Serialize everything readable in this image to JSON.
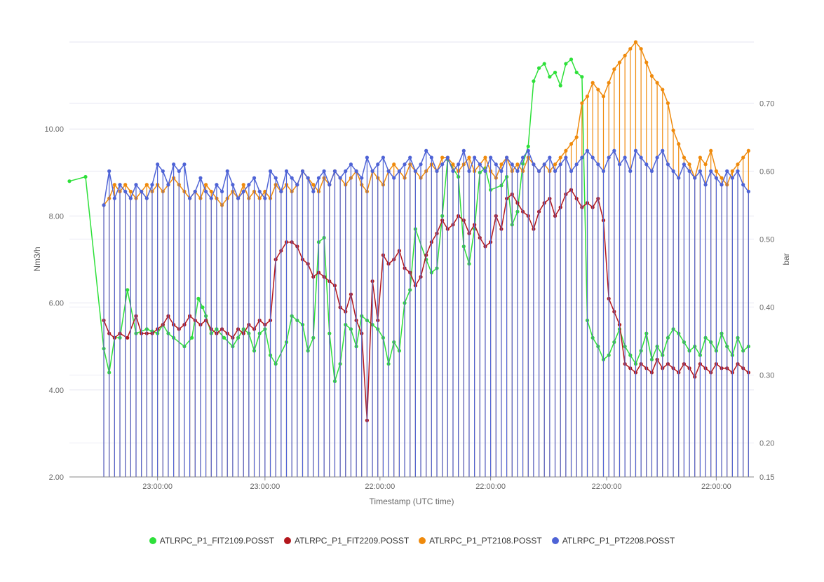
{
  "chart_data": {
    "type": "line",
    "xlabel": "Timestamp (UTC time)",
    "ylabel_left": "Nm3/h",
    "ylabel_right": "bar",
    "x_tick_labels": [
      "23:00:00",
      "23:00:00",
      "22:00:00",
      "22:00:00",
      "22:00:00",
      "22:00:00"
    ],
    "x_tick_positions": [
      1.0,
      2.0,
      3.07,
      4.1,
      5.18,
      6.2
    ],
    "x_range": [
      0.18,
      6.55
    ],
    "y_left_ticks": [
      2.0,
      4.0,
      6.0,
      8.0,
      10.0
    ],
    "y_left_tick_labels": [
      "2.00",
      "4.00",
      "6.00",
      "8.00",
      "10.00"
    ],
    "y_left_range": [
      2.0,
      12.0
    ],
    "y_right_ticks": [
      0.15,
      0.2,
      0.3,
      0.4,
      0.5,
      0.6,
      0.7
    ],
    "y_right_tick_labels": [
      "0.15",
      "0.20",
      "0.30",
      "0.40",
      "0.50",
      "0.60",
      "0.70"
    ],
    "y_right_range": [
      0.15,
      0.79
    ],
    "grid": true,
    "legend_position": "bottom",
    "series": [
      {
        "name": "ATLRPC_P1_FIT2109.POSST",
        "axis": "left",
        "color": "#2ee03a",
        "x": [
          0.18,
          0.33,
          0.5,
          0.55,
          0.6,
          0.65,
          0.72,
          0.8,
          0.9,
          0.95,
          1.0,
          1.05,
          1.1,
          1.15,
          1.25,
          1.32,
          1.38,
          1.42,
          1.45,
          1.5,
          1.55,
          1.62,
          1.7,
          1.75,
          1.8,
          1.85,
          1.9,
          1.95,
          2.0,
          2.05,
          2.1,
          2.2,
          2.25,
          2.3,
          2.35,
          2.4,
          2.45,
          2.5,
          2.55,
          2.6,
          2.65,
          2.7,
          2.75,
          2.8,
          2.85,
          2.9,
          2.95,
          3.0,
          3.05,
          3.1,
          3.15,
          3.2,
          3.25,
          3.3,
          3.35,
          3.4,
          3.5,
          3.55,
          3.6,
          3.65,
          3.7,
          3.8,
          3.85,
          3.9,
          3.95,
          4.0,
          4.05,
          4.1,
          4.2,
          4.25,
          4.3,
          4.35,
          4.4,
          4.45,
          4.5,
          4.55,
          4.6,
          4.65,
          4.7,
          4.75,
          4.8,
          4.85,
          4.9,
          4.95,
          5.0,
          5.05,
          5.1,
          5.15,
          5.2,
          5.25,
          5.3,
          5.35,
          5.4,
          5.45,
          5.5,
          5.55,
          5.6,
          5.65,
          5.7,
          5.75,
          5.8,
          5.85,
          5.9,
          5.95,
          6.0,
          6.05,
          6.1,
          6.15,
          6.2,
          6.25,
          6.3,
          6.35,
          6.4,
          6.45,
          6.5
        ],
        "y": [
          8.8,
          8.9,
          4.95,
          4.4,
          5.2,
          5.2,
          6.3,
          5.3,
          5.4,
          5.35,
          5.3,
          5.5,
          5.3,
          5.2,
          5.0,
          5.2,
          6.1,
          5.9,
          5.7,
          5.3,
          5.4,
          5.2,
          5.0,
          5.2,
          5.4,
          5.3,
          4.9,
          5.3,
          5.4,
          4.8,
          4.6,
          5.1,
          5.7,
          5.6,
          5.5,
          4.9,
          5.2,
          7.4,
          7.5,
          5.3,
          4.2,
          4.6,
          5.5,
          5.4,
          5.0,
          5.7,
          5.6,
          5.5,
          5.4,
          5.2,
          4.6,
          5.1,
          4.9,
          6.0,
          6.3,
          7.7,
          7.0,
          6.7,
          6.8,
          8.0,
          9.3,
          8.9,
          7.3,
          6.9,
          7.7,
          9.0,
          9.1,
          8.6,
          8.7,
          8.9,
          7.8,
          8.1,
          9.2,
          9.6,
          11.1,
          11.4,
          11.5,
          11.2,
          11.3,
          11.0,
          11.5,
          11.6,
          11.3,
          11.2,
          5.6,
          5.2,
          5.0,
          4.7,
          4.8,
          5.1,
          5.4,
          5.0,
          4.8,
          4.6,
          4.9,
          5.3,
          4.7,
          5.0,
          4.8,
          5.2,
          5.4,
          5.3,
          5.1,
          4.9,
          5.0,
          4.8,
          5.2,
          5.1,
          4.9,
          5.3,
          5.0,
          4.8,
          5.2,
          4.9,
          5.0
        ]
      },
      {
        "name": "ATLRPC_P1_FIT2209.POSST",
        "axis": "left",
        "color": "#b3161c",
        "x": [
          0.5,
          0.55,
          0.6,
          0.65,
          0.72,
          0.8,
          0.85,
          0.9,
          0.95,
          1.0,
          1.05,
          1.1,
          1.15,
          1.2,
          1.25,
          1.3,
          1.35,
          1.4,
          1.45,
          1.5,
          1.55,
          1.6,
          1.65,
          1.7,
          1.75,
          1.8,
          1.85,
          1.9,
          1.95,
          2.0,
          2.05,
          2.1,
          2.15,
          2.2,
          2.25,
          2.3,
          2.35,
          2.4,
          2.45,
          2.5,
          2.55,
          2.6,
          2.65,
          2.7,
          2.75,
          2.8,
          2.85,
          2.9,
          2.95,
          3.0,
          3.05,
          3.1,
          3.15,
          3.2,
          3.25,
          3.3,
          3.35,
          3.4,
          3.45,
          3.5,
          3.55,
          3.6,
          3.65,
          3.7,
          3.75,
          3.8,
          3.85,
          3.9,
          3.95,
          4.0,
          4.05,
          4.1,
          4.15,
          4.2,
          4.25,
          4.3,
          4.35,
          4.4,
          4.45,
          4.5,
          4.55,
          4.6,
          4.65,
          4.7,
          4.75,
          4.8,
          4.85,
          4.9,
          4.95,
          5.0,
          5.05,
          5.1,
          5.15,
          5.2,
          5.25,
          5.3,
          5.35,
          5.4,
          5.45,
          5.5,
          5.55,
          5.6,
          5.65,
          5.7,
          5.75,
          5.8,
          5.85,
          5.9,
          5.95,
          6.0,
          6.05,
          6.1,
          6.15,
          6.2,
          6.25,
          6.3,
          6.35,
          6.4,
          6.45,
          6.5
        ],
        "y": [
          5.6,
          5.3,
          5.2,
          5.3,
          5.2,
          5.7,
          5.3,
          5.3,
          5.3,
          5.4,
          5.5,
          5.7,
          5.5,
          5.4,
          5.5,
          5.7,
          5.6,
          5.5,
          5.6,
          5.4,
          5.3,
          5.4,
          5.3,
          5.2,
          5.4,
          5.3,
          5.5,
          5.4,
          5.6,
          5.5,
          5.6,
          7.0,
          7.2,
          7.4,
          7.4,
          7.3,
          7.0,
          6.9,
          6.6,
          6.7,
          6.6,
          6.5,
          6.4,
          5.9,
          5.8,
          6.2,
          5.6,
          5.3,
          3.3,
          6.5,
          5.6,
          7.1,
          6.9,
          7.0,
          7.2,
          6.8,
          6.7,
          6.4,
          6.6,
          7.1,
          7.4,
          7.6,
          7.9,
          7.7,
          7.8,
          8.0,
          7.9,
          7.6,
          7.8,
          7.5,
          7.3,
          7.4,
          8.0,
          7.7,
          8.4,
          8.5,
          8.3,
          8.1,
          8.0,
          7.7,
          8.1,
          8.3,
          8.4,
          8.0,
          8.2,
          8.5,
          8.6,
          8.4,
          8.2,
          8.3,
          8.2,
          8.4,
          7.9,
          6.1,
          5.8,
          5.5,
          4.6,
          4.5,
          4.4,
          4.6,
          4.5,
          4.4,
          4.7,
          4.5,
          4.6,
          4.5,
          4.4,
          4.6,
          4.5,
          4.3,
          4.6,
          4.5,
          4.4,
          4.6,
          4.5,
          4.5,
          4.4,
          4.6,
          4.5,
          4.4
        ]
      },
      {
        "name": "ATLRPC_P1_PT2108.POSST",
        "axis": "right",
        "color": "#ef8a0c",
        "x": [
          0.5,
          0.55,
          0.6,
          0.65,
          0.7,
          0.75,
          0.8,
          0.85,
          0.9,
          0.95,
          1.0,
          1.05,
          1.1,
          1.15,
          1.2,
          1.25,
          1.3,
          1.35,
          1.4,
          1.45,
          1.5,
          1.55,
          1.6,
          1.65,
          1.7,
          1.75,
          1.8,
          1.85,
          1.9,
          1.95,
          2.0,
          2.05,
          2.1,
          2.15,
          2.2,
          2.25,
          2.3,
          2.35,
          2.4,
          2.45,
          2.5,
          2.55,
          2.6,
          2.65,
          2.7,
          2.75,
          2.8,
          2.85,
          2.9,
          2.95,
          3.0,
          3.05,
          3.1,
          3.15,
          3.2,
          3.25,
          3.3,
          3.35,
          3.4,
          3.45,
          3.5,
          3.55,
          3.6,
          3.65,
          3.7,
          3.75,
          3.8,
          3.85,
          3.9,
          3.95,
          4.0,
          4.05,
          4.1,
          4.15,
          4.2,
          4.25,
          4.3,
          4.35,
          4.4,
          4.45,
          4.5,
          4.55,
          4.6,
          4.65,
          4.7,
          4.75,
          4.8,
          4.85,
          4.9,
          4.95,
          5.0,
          5.05,
          5.1,
          5.15,
          5.2,
          5.25,
          5.3,
          5.35,
          5.4,
          5.45,
          5.5,
          5.55,
          5.6,
          5.65,
          5.7,
          5.75,
          5.8,
          5.85,
          5.9,
          5.95,
          6.0,
          6.05,
          6.1,
          6.15,
          6.2,
          6.25,
          6.3,
          6.35,
          6.4,
          6.45,
          6.5
        ],
        "y": [
          0.55,
          0.56,
          0.58,
          0.57,
          0.58,
          0.57,
          0.56,
          0.57,
          0.58,
          0.57,
          0.58,
          0.57,
          0.58,
          0.59,
          0.58,
          0.57,
          0.56,
          0.57,
          0.56,
          0.58,
          0.57,
          0.56,
          0.55,
          0.56,
          0.57,
          0.56,
          0.58,
          0.56,
          0.57,
          0.56,
          0.57,
          0.56,
          0.58,
          0.57,
          0.58,
          0.57,
          0.58,
          0.6,
          0.59,
          0.58,
          0.57,
          0.59,
          0.58,
          0.6,
          0.59,
          0.58,
          0.59,
          0.6,
          0.58,
          0.57,
          0.6,
          0.59,
          0.58,
          0.6,
          0.61,
          0.6,
          0.59,
          0.61,
          0.6,
          0.59,
          0.6,
          0.61,
          0.6,
          0.62,
          0.62,
          0.61,
          0.6,
          0.61,
          0.62,
          0.6,
          0.61,
          0.62,
          0.6,
          0.59,
          0.61,
          0.62,
          0.6,
          0.61,
          0.6,
          0.62,
          0.61,
          0.6,
          0.61,
          0.6,
          0.61,
          0.62,
          0.63,
          0.64,
          0.65,
          0.7,
          0.71,
          0.73,
          0.72,
          0.71,
          0.73,
          0.75,
          0.76,
          0.77,
          0.78,
          0.79,
          0.78,
          0.76,
          0.74,
          0.73,
          0.72,
          0.7,
          0.66,
          0.64,
          0.62,
          0.61,
          0.59,
          0.62,
          0.61,
          0.63,
          0.6,
          0.59,
          0.58,
          0.6,
          0.61,
          0.62,
          0.63
        ]
      },
      {
        "name": "ATLRPC_P1_PT2208.POSST",
        "axis": "right",
        "color": "#4e63d6",
        "x": [
          0.5,
          0.55,
          0.6,
          0.65,
          0.7,
          0.75,
          0.8,
          0.85,
          0.9,
          0.95,
          1.0,
          1.05,
          1.1,
          1.15,
          1.2,
          1.25,
          1.3,
          1.35,
          1.4,
          1.45,
          1.5,
          1.55,
          1.6,
          1.65,
          1.7,
          1.75,
          1.8,
          1.85,
          1.9,
          1.95,
          2.0,
          2.05,
          2.1,
          2.15,
          2.2,
          2.25,
          2.3,
          2.35,
          2.4,
          2.45,
          2.5,
          2.55,
          2.6,
          2.65,
          2.7,
          2.75,
          2.8,
          2.85,
          2.9,
          2.95,
          3.0,
          3.05,
          3.1,
          3.15,
          3.2,
          3.25,
          3.3,
          3.35,
          3.4,
          3.45,
          3.5,
          3.55,
          3.6,
          3.65,
          3.7,
          3.75,
          3.8,
          3.85,
          3.9,
          3.95,
          4.0,
          4.05,
          4.1,
          4.15,
          4.2,
          4.25,
          4.3,
          4.35,
          4.4,
          4.45,
          4.5,
          4.55,
          4.6,
          4.65,
          4.7,
          4.75,
          4.8,
          4.85,
          4.9,
          4.95,
          5.0,
          5.05,
          5.1,
          5.15,
          5.2,
          5.25,
          5.3,
          5.35,
          5.4,
          5.45,
          5.5,
          5.55,
          5.6,
          5.65,
          5.7,
          5.75,
          5.8,
          5.85,
          5.9,
          5.95,
          6.0,
          6.05,
          6.1,
          6.15,
          6.2,
          6.25,
          6.3,
          6.35,
          6.4,
          6.45,
          6.5
        ],
        "y": [
          0.55,
          0.6,
          0.56,
          0.58,
          0.57,
          0.56,
          0.58,
          0.57,
          0.56,
          0.58,
          0.61,
          0.6,
          0.58,
          0.61,
          0.6,
          0.61,
          0.56,
          0.57,
          0.59,
          0.57,
          0.56,
          0.58,
          0.57,
          0.6,
          0.58,
          0.56,
          0.57,
          0.58,
          0.59,
          0.57,
          0.56,
          0.6,
          0.59,
          0.57,
          0.6,
          0.59,
          0.58,
          0.6,
          0.59,
          0.57,
          0.59,
          0.6,
          0.58,
          0.6,
          0.59,
          0.6,
          0.61,
          0.6,
          0.59,
          0.62,
          0.6,
          0.61,
          0.62,
          0.6,
          0.59,
          0.6,
          0.61,
          0.62,
          0.6,
          0.61,
          0.63,
          0.62,
          0.6,
          0.61,
          0.62,
          0.6,
          0.61,
          0.63,
          0.6,
          0.62,
          0.61,
          0.6,
          0.62,
          0.61,
          0.6,
          0.62,
          0.61,
          0.6,
          0.62,
          0.63,
          0.61,
          0.6,
          0.61,
          0.62,
          0.6,
          0.61,
          0.62,
          0.6,
          0.61,
          0.62,
          0.63,
          0.62,
          0.61,
          0.6,
          0.62,
          0.63,
          0.61,
          0.62,
          0.6,
          0.63,
          0.62,
          0.61,
          0.6,
          0.62,
          0.63,
          0.61,
          0.6,
          0.59,
          0.61,
          0.6,
          0.59,
          0.6,
          0.58,
          0.6,
          0.59,
          0.58,
          0.6,
          0.59,
          0.6,
          0.58,
          0.57
        ]
      }
    ]
  }
}
